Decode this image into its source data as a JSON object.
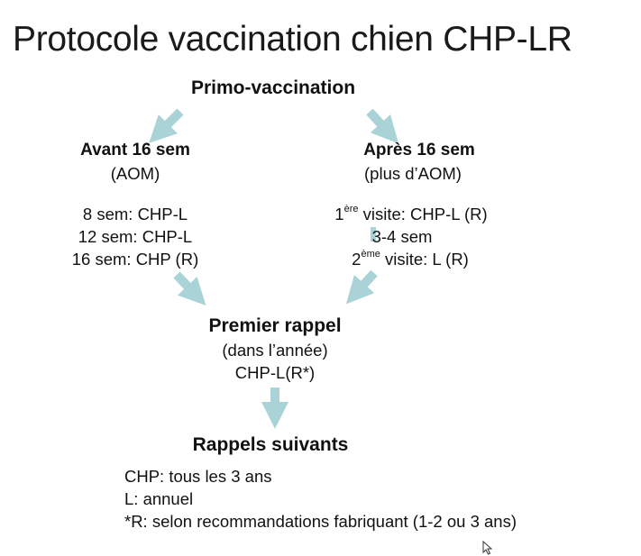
{
  "title": "Protocole vaccination chien CHP-LR",
  "primo": "Primo-vaccination",
  "left_branch": {
    "heading": "Avant 16 sem",
    "subtitle": "(AOM)",
    "lines": [
      "8 sem: CHP-L",
      "12 sem: CHP-L",
      "16 sem: CHP (R)"
    ]
  },
  "right_branch": {
    "heading": "Après 16 sem",
    "subtitle": "(plus d’AOM)",
    "visit1_prefix": "1",
    "visit1_sup": "ère",
    "visit1_rest": " visite: CHP-L (R)",
    "interval": "3-4 sem",
    "visit2_prefix": "2",
    "visit2_sup": "ème",
    "visit2_rest": " visite: L (R)"
  },
  "premier_rappel": {
    "heading": "Premier rappel",
    "subtitle": "(dans l’année)",
    "detail": "CHP-L(R*)"
  },
  "rappels_suivants": {
    "heading": "Rappels suivants",
    "lines": [
      "CHP: tous les 3 ans",
      "L: annuel",
      "*R: selon recommandations fabriquant (1-2 ou 3 ans)"
    ]
  },
  "colors": {
    "arrow": "#a9d3d6",
    "text": "#111111"
  },
  "icons": {
    "cursor": "mouse-pointer-icon"
  }
}
